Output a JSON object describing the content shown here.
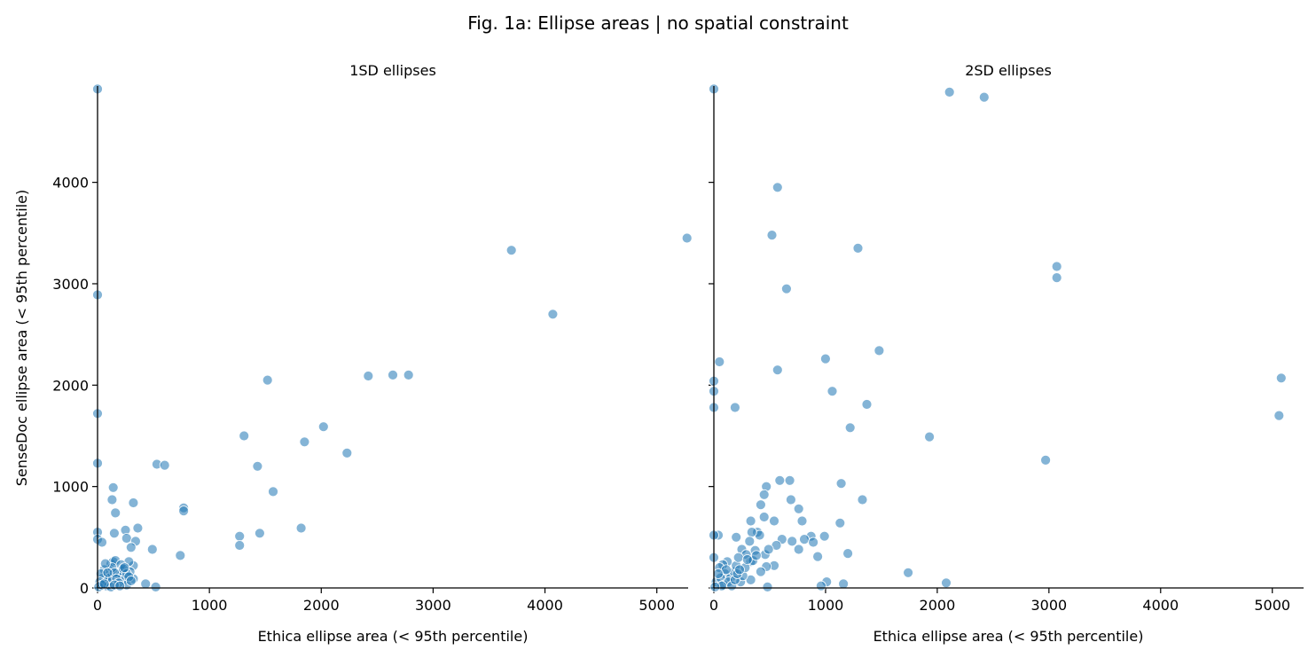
{
  "figure": {
    "title": "Fig. 1a: Ellipse areas | no spatial constraint"
  },
  "chart_data": [
    {
      "type": "scatter",
      "title": "1SD ellipses",
      "xlabel": "Ethica ellipse area (< 95th percentile)",
      "ylabel": "SenseDoc ellipse area (< 95th percentile)",
      "xlim": [
        0,
        5280
      ],
      "ylim": [
        0,
        4950
      ],
      "xticks": [
        0,
        1000,
        2000,
        3000,
        4000,
        5000
      ],
      "yticks": [
        0,
        1000,
        2000,
        3000,
        4000
      ],
      "grid": false,
      "color": "#1f77b4",
      "points": [
        [
          0,
          4920
        ],
        [
          0,
          2890
        ],
        [
          0,
          1720
        ],
        [
          0,
          1230
        ],
        [
          0,
          550
        ],
        [
          0,
          480
        ],
        [
          40,
          450
        ],
        [
          5270,
          3450
        ],
        [
          3700,
          3330
        ],
        [
          4070,
          2700
        ],
        [
          2420,
          2090
        ],
        [
          2640,
          2100
        ],
        [
          2780,
          2100
        ],
        [
          1520,
          2050
        ],
        [
          2020,
          1590
        ],
        [
          1850,
          1440
        ],
        [
          1310,
          1500
        ],
        [
          2230,
          1330
        ],
        [
          530,
          1220
        ],
        [
          600,
          1210
        ],
        [
          1430,
          1200
        ],
        [
          1570,
          950
        ],
        [
          140,
          990
        ],
        [
          320,
          840
        ],
        [
          130,
          870
        ],
        [
          770,
          790
        ],
        [
          770,
          760
        ],
        [
          160,
          740
        ],
        [
          1820,
          590
        ],
        [
          1270,
          510
        ],
        [
          1450,
          540
        ],
        [
          1270,
          420
        ],
        [
          250,
          570
        ],
        [
          360,
          590
        ],
        [
          150,
          540
        ],
        [
          260,
          490
        ],
        [
          340,
          460
        ],
        [
          490,
          380
        ],
        [
          740,
          320
        ],
        [
          300,
          400
        ],
        [
          320,
          220
        ],
        [
          430,
          40
        ],
        [
          520,
          10
        ],
        [
          320,
          90
        ],
        [
          280,
          260
        ],
        [
          290,
          160
        ],
        [
          80,
          20
        ],
        [
          100,
          120
        ],
        [
          120,
          240
        ],
        [
          140,
          260
        ],
        [
          160,
          270
        ],
        [
          180,
          150
        ],
        [
          200,
          120
        ],
        [
          220,
          170
        ],
        [
          240,
          80
        ],
        [
          260,
          30
        ],
        [
          60,
          180
        ],
        [
          90,
          60
        ],
        [
          110,
          100
        ],
        [
          130,
          200
        ],
        [
          150,
          150
        ],
        [
          170,
          90
        ],
        [
          190,
          50
        ],
        [
          210,
          230
        ],
        [
          230,
          190
        ],
        [
          50,
          100
        ],
        [
          30,
          140
        ],
        [
          20,
          60
        ],
        [
          10,
          10
        ],
        [
          70,
          240
        ],
        [
          40,
          30
        ],
        [
          260,
          140
        ],
        [
          280,
          110
        ],
        [
          300,
          70
        ],
        [
          120,
          10
        ],
        [
          150,
          30
        ],
        [
          200,
          20
        ],
        [
          240,
          200
        ],
        [
          60,
          40
        ],
        [
          90,
          150
        ]
      ]
    },
    {
      "type": "scatter",
      "title": "2SD ellipses",
      "xlabel": "Ethica ellipse area (< 95th percentile)",
      "ylabel": "",
      "xlim": [
        0,
        5280
      ],
      "ylim": [
        0,
        4950
      ],
      "xticks": [
        0,
        1000,
        2000,
        3000,
        4000,
        5000
      ],
      "yticks": [
        0,
        1000,
        2000,
        3000,
        4000
      ],
      "grid": false,
      "color": "#1f77b4",
      "points": [
        [
          0,
          4920
        ],
        [
          2110,
          4890
        ],
        [
          2420,
          4840
        ],
        [
          570,
          3950
        ],
        [
          520,
          3480
        ],
        [
          1290,
          3350
        ],
        [
          3070,
          3170
        ],
        [
          3070,
          3060
        ],
        [
          650,
          2950
        ],
        [
          1480,
          2340
        ],
        [
          1000,
          2260
        ],
        [
          570,
          2150
        ],
        [
          50,
          2230
        ],
        [
          0,
          2040
        ],
        [
          0,
          1940
        ],
        [
          1060,
          1940
        ],
        [
          1370,
          1810
        ],
        [
          190,
          1780
        ],
        [
          0,
          1780
        ],
        [
          5080,
          2070
        ],
        [
          5060,
          1700
        ],
        [
          1220,
          1580
        ],
        [
          1930,
          1490
        ],
        [
          2970,
          1260
        ],
        [
          590,
          1060
        ],
        [
          680,
          1060
        ],
        [
          1140,
          1030
        ],
        [
          470,
          1000
        ],
        [
          450,
          920
        ],
        [
          690,
          870
        ],
        [
          1330,
          870
        ],
        [
          420,
          820
        ],
        [
          760,
          780
        ],
        [
          450,
          700
        ],
        [
          330,
          660
        ],
        [
          540,
          660
        ],
        [
          790,
          660
        ],
        [
          1130,
          640
        ],
        [
          390,
          550
        ],
        [
          410,
          520
        ],
        [
          340,
          550
        ],
        [
          870,
          510
        ],
        [
          990,
          510
        ],
        [
          810,
          480
        ],
        [
          610,
          480
        ],
        [
          890,
          450
        ],
        [
          700,
          460
        ],
        [
          200,
          500
        ],
        [
          40,
          520
        ],
        [
          0,
          520
        ],
        [
          0,
          300
        ],
        [
          560,
          420
        ],
        [
          320,
          460
        ],
        [
          370,
          370
        ],
        [
          460,
          330
        ],
        [
          490,
          380
        ],
        [
          760,
          380
        ],
        [
          250,
          380
        ],
        [
          290,
          330
        ],
        [
          330,
          260
        ],
        [
          350,
          270
        ],
        [
          930,
          310
        ],
        [
          1200,
          340
        ],
        [
          540,
          220
        ],
        [
          470,
          210
        ],
        [
          330,
          80
        ],
        [
          120,
          260
        ],
        [
          80,
          230
        ],
        [
          50,
          200
        ],
        [
          100,
          140
        ],
        [
          150,
          100
        ],
        [
          180,
          160
        ],
        [
          200,
          220
        ],
        [
          220,
          300
        ],
        [
          240,
          60
        ],
        [
          260,
          120
        ],
        [
          280,
          200
        ],
        [
          20,
          60
        ],
        [
          60,
          100
        ],
        [
          90,
          30
        ],
        [
          110,
          180
        ],
        [
          130,
          60
        ],
        [
          160,
          20
        ],
        [
          190,
          80
        ],
        [
          210,
          140
        ],
        [
          230,
          180
        ],
        [
          40,
          140
        ],
        [
          70,
          20
        ],
        [
          10,
          10
        ],
        [
          300,
          280
        ],
        [
          380,
          320
        ],
        [
          420,
          160
        ],
        [
          1740,
          150
        ],
        [
          2080,
          50
        ],
        [
          1010,
          60
        ],
        [
          960,
          20
        ],
        [
          1160,
          40
        ],
        [
          480,
          10
        ]
      ]
    }
  ]
}
